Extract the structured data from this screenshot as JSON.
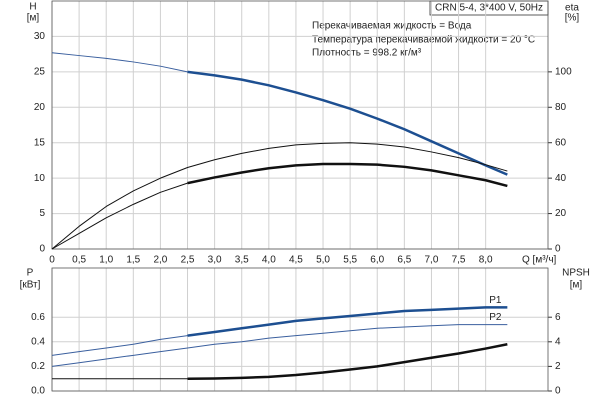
{
  "chart_data": [
    {
      "type": "line",
      "title": "CRN 5-4, 3*400 V, 50Hz",
      "notes": [
        "Перекачиваемая жидкость = Вода",
        "Температура перекачиваемой жидкости = 20 °C",
        "Плотность = 998.2 кг/м³"
      ],
      "y_label": [
        "H",
        "[м]"
      ],
      "y2_label": [
        "eta",
        "[%]"
      ],
      "x_label": "Q [м³/ч]",
      "xlim": [
        0,
        9.15
      ],
      "ylim": [
        0,
        35
      ],
      "y2lim": [
        0,
        140
      ],
      "grid": true,
      "xtick_labels": true,
      "xticks": [
        0,
        {
          "value": 0.5,
          "label": "0,5"
        },
        {
          "value": 1,
          "label": "1,0"
        },
        {
          "value": 1.5,
          "label": "1,5"
        },
        {
          "value": 2,
          "label": "2,0"
        },
        {
          "value": 2.5,
          "label": "2,5"
        },
        {
          "value": 3,
          "label": "3,0"
        },
        {
          "value": 3.5,
          "label": "3,5"
        },
        {
          "value": 4,
          "label": "4,0"
        },
        {
          "value": 4.5,
          "label": "4,5"
        },
        {
          "value": 5,
          "label": "5,0"
        },
        {
          "value": 5.5,
          "label": "5,5"
        },
        {
          "value": 6,
          "label": "6,0"
        },
        {
          "value": 6.5,
          "label": "6,5"
        },
        {
          "value": 7,
          "label": "7,0"
        },
        {
          "value": 7.5,
          "label": "7,5"
        },
        {
          "value": 8,
          "label": "8,0"
        }
      ],
      "yticks": [
        0,
        5,
        10,
        15,
        20,
        25,
        30
      ],
      "y2ticks": [
        0,
        20,
        40,
        60,
        80,
        100
      ],
      "series": [
        {
          "color": "#3a5f9e",
          "width": 1,
          "x": [
            0,
            0.5,
            1,
            1.5,
            2,
            2.5
          ],
          "values": [
            27.7,
            27.3,
            26.9,
            26.4,
            25.8,
            25.0
          ]
        },
        {
          "color": "#1d4f91",
          "width": 2.5,
          "x": [
            2.5,
            3,
            3.5,
            4,
            4.5,
            5,
            5.5,
            6,
            6.5,
            7,
            7.5,
            8,
            8.4
          ],
          "values": [
            25.0,
            24.5,
            23.9,
            23.1,
            22.1,
            21.0,
            19.8,
            18.4,
            16.9,
            15.2,
            13.5,
            11.8,
            10.5
          ]
        },
        {
          "color": "#111111",
          "width": 1,
          "axis": "y2",
          "x": [
            0,
            0.5,
            1,
            1.5,
            2,
            2.5,
            3,
            3.5,
            4,
            4.5,
            5,
            5.5,
            6,
            6.5,
            7,
            7.5,
            8,
            8.4
          ],
          "values": [
            0,
            12.8,
            24,
            32.8,
            40,
            46,
            50.4,
            54,
            56.8,
            58.8,
            59.6,
            60,
            59.2,
            57.6,
            54.8,
            51.6,
            47.6,
            44
          ]
        },
        {
          "color": "#111111",
          "width": 1,
          "axis": "y2",
          "x": [
            0,
            0.5,
            1,
            1.5,
            2,
            2.5
          ],
          "values": [
            0,
            8.8,
            17.6,
            25.2,
            32,
            37.2
          ]
        },
        {
          "color": "#111111",
          "width": 2.5,
          "axis": "y2",
          "x": [
            2.5,
            3,
            3.5,
            4,
            4.5,
            5,
            5.5,
            6,
            6.5,
            7,
            7.5,
            8,
            8.4
          ],
          "values": [
            37.2,
            40.4,
            43.2,
            45.6,
            47.2,
            48,
            48,
            47.6,
            46.4,
            44.4,
            41.6,
            38.8,
            35.6
          ]
        }
      ]
    },
    {
      "type": "line",
      "y_label": [
        "P",
        "[кВт]"
      ],
      "y2_label": [
        "NPSH",
        "[м]"
      ],
      "xlim": [
        0,
        9.15
      ],
      "ylim": [
        0,
        1.0
      ],
      "y2lim": [
        0,
        10
      ],
      "grid": true,
      "xtick_labels": false,
      "xticks": [
        0,
        0.5,
        1,
        1.5,
        2,
        2.5,
        3,
        3.5,
        4,
        4.5,
        5,
        5.5,
        6,
        6.5,
        7,
        7.5,
        8
      ],
      "yticks": [
        {
          "value": 0,
          "label": "0.0"
        },
        0.2,
        0.4,
        0.6
      ],
      "y2ticks": [
        0,
        2,
        4,
        6
      ],
      "series": [
        {
          "color": "#3a5f9e",
          "width": 1,
          "x": [
            0,
            0.5,
            1,
            1.5,
            2,
            2.5
          ],
          "values": [
            0.29,
            0.32,
            0.35,
            0.38,
            0.42,
            0.45
          ]
        },
        {
          "color": "#1d4f91",
          "width": 2.5,
          "label": "P1",
          "x": [
            2.5,
            3,
            3.5,
            4,
            4.5,
            5,
            5.5,
            6,
            6.5,
            7,
            7.5,
            8,
            8.4
          ],
          "values": [
            0.45,
            0.48,
            0.51,
            0.54,
            0.57,
            0.59,
            0.61,
            0.63,
            0.65,
            0.66,
            0.67,
            0.68,
            0.68
          ]
        },
        {
          "color": "#3a5f9e",
          "width": 1,
          "label": "P2",
          "x": [
            0,
            0.5,
            1,
            1.5,
            2,
            2.5,
            3,
            3.5,
            4,
            4.5,
            5,
            5.5,
            6,
            6.5,
            7,
            7.5,
            8,
            8.4
          ],
          "values": [
            0.2,
            0.23,
            0.26,
            0.29,
            0.32,
            0.35,
            0.38,
            0.4,
            0.43,
            0.45,
            0.47,
            0.49,
            0.51,
            0.52,
            0.53,
            0.54,
            0.54,
            0.54
          ]
        },
        {
          "color": "#111111",
          "width": 1,
          "axis": "y2",
          "x": [
            0,
            0.5,
            1,
            1.5,
            2,
            2.5
          ],
          "values": [
            1.0,
            1.0,
            1.0,
            1.0,
            1.0,
            1.0
          ]
        },
        {
          "color": "#111111",
          "width": 2.5,
          "axis": "y2",
          "x": [
            2.5,
            3,
            3.5,
            4,
            4.5,
            5,
            5.5,
            6,
            6.5,
            7,
            7.5,
            8,
            8.4
          ],
          "values": [
            1.0,
            1.02,
            1.07,
            1.15,
            1.3,
            1.5,
            1.75,
            2.0,
            2.35,
            2.7,
            3.05,
            3.45,
            3.8
          ]
        }
      ]
    }
  ]
}
